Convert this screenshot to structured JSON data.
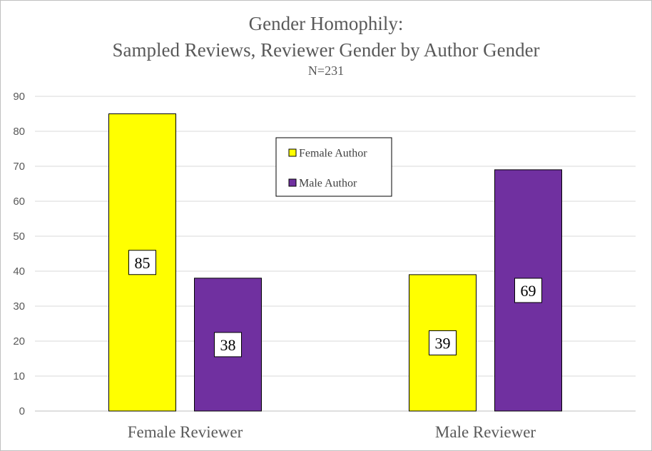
{
  "chart_data": {
    "type": "bar",
    "title": "Gender Homophily:",
    "subtitle": "Sampled Reviews, Reviewer Gender by Author Gender",
    "note": "N=231",
    "categories": [
      "Female Reviewer",
      "Male Reviewer"
    ],
    "series": [
      {
        "name": "Female Author",
        "values": [
          85,
          39
        ],
        "color": "#ffff00"
      },
      {
        "name": "Male Author",
        "values": [
          38,
          69
        ],
        "color": "#7030a0"
      }
    ],
    "ylim": [
      0,
      90
    ],
    "yticks": [
      0,
      10,
      20,
      30,
      40,
      50,
      60,
      70,
      80,
      90
    ],
    "grid": true,
    "legend": "top-center"
  }
}
